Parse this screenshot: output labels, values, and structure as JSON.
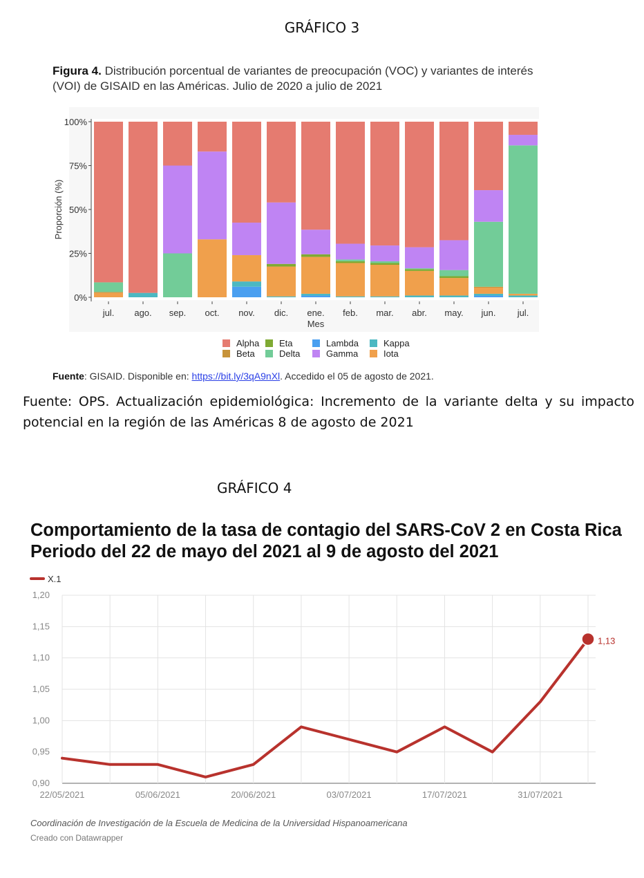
{
  "heading_g3": "GRÁFICO 3",
  "figure4": {
    "title_bold": "Figura 4.",
    "title_line1": " Distribución porcentual de variantes de preocupación (VOC) y variantes de interés",
    "title_line2": "(VOI) de GISAID en las Américas. Julio de 2020 a julio de 2021",
    "source_bold": "Fuente",
    "source_text": ": GISAID. Disponible en: ",
    "source_link": "https://bit.ly/3qA9nXl",
    "source_tail": ". Accedido el 05 de agosto de 2021."
  },
  "ops_source": "Fuente: OPS.   Actualización epidemiológica: Incremento de la variante delta y su impacto potencial en la región de las Américas 8 de agosto de 2021",
  "heading_g4": "GRÁFICO 4",
  "datawrapper": {
    "title_line1": "Comportamiento de la tasa de contagio del SARS-CoV 2 en Costa Rica",
    "title_line2": "Periodo del 22 de mayo del 2021 al 9 de agosto del 2021",
    "note": "Coordinación de Investigación de la Escuela de Medicina de la Universidad Hispanoamericana",
    "credit": "Creado con Datawrapper"
  },
  "colors": {
    "Alpha": "#e57b70",
    "Beta": "#c7933a",
    "Eta": "#7faa33",
    "Delta": "#72cc98",
    "Lambda": "#4a9ff0",
    "Gamma": "#bf84f3",
    "Kappa": "#4cb8c2",
    "Iota": "#f0a04c",
    "line": "#b8322d"
  },
  "chart_data": [
    {
      "type": "bar",
      "stacked": true,
      "xlabel": "Mes",
      "ylabel": "Proporción (%)",
      "ylim": [
        0,
        100
      ],
      "yticks": [
        "0%",
        "25%",
        "50%",
        "75%",
        "100%"
      ],
      "categories": [
        "jul.",
        "ago.",
        "sep.",
        "oct.",
        "nov.",
        "dic.",
        "ene.",
        "feb.",
        "mar.",
        "abr.",
        "may.",
        "jun.",
        "jul."
      ],
      "legend_rows": [
        [
          "Alpha",
          "Eta",
          "Lambda",
          "Kappa"
        ],
        [
          "Beta",
          "Delta",
          "Gamma",
          "Iota"
        ]
      ],
      "series": [
        {
          "name": "Lambda",
          "values": [
            0,
            0,
            0,
            0,
            6,
            0,
            1,
            0,
            0,
            0,
            0,
            1,
            0
          ]
        },
        {
          "name": "Kappa",
          "values": [
            0,
            2.5,
            0,
            0,
            3,
            0.5,
            1,
            0.5,
            0.5,
            1,
            1,
            1,
            1
          ]
        },
        {
          "name": "Iota",
          "values": [
            2.5,
            0,
            0,
            33,
            15,
            17,
            21,
            19,
            18,
            14,
            10,
            3.5,
            1
          ]
        },
        {
          "name": "Beta",
          "values": [
            0.5,
            0,
            0,
            0,
            0,
            0,
            0,
            0,
            0,
            0,
            0,
            0.5,
            0
          ]
        },
        {
          "name": "Eta",
          "values": [
            0,
            0,
            0,
            0,
            0,
            1.5,
            1.5,
            1,
            1,
            1,
            1,
            0,
            0
          ]
        },
        {
          "name": "Delta",
          "values": [
            5.5,
            0,
            25,
            0,
            0,
            0,
            0,
            1,
            1,
            0.5,
            3.5,
            37,
            84.5
          ]
        },
        {
          "name": "Gamma",
          "values": [
            0,
            0,
            50,
            50,
            18.5,
            35,
            14,
            9,
            9,
            12,
            17,
            18,
            6
          ]
        },
        {
          "name": "Alpha",
          "values": [
            91.5,
            97.5,
            25,
            17,
            57.5,
            46,
            61.5,
            69.5,
            70.5,
            71.5,
            67.5,
            39,
            7.5
          ]
        }
      ]
    },
    {
      "type": "line",
      "series_name": "X.1",
      "ylim": [
        0.9,
        1.2
      ],
      "yticks": [
        "0,90",
        "0,95",
        "1,00",
        "1,05",
        "1,10",
        "1,15",
        "1,20"
      ],
      "xtick_labels": [
        "22/05/2021",
        "05/06/2021",
        "20/06/2021",
        "03/07/2021",
        "17/07/2021",
        "31/07/2021"
      ],
      "x": [
        "22/05/2021",
        "29/05/2021",
        "05/06/2021",
        "13/06/2021",
        "20/06/2021",
        "27/06/2021",
        "03/07/2021",
        "10/07/2021",
        "17/07/2021",
        "24/07/2021",
        "31/07/2021",
        "09/08/2021"
      ],
      "values": [
        0.94,
        0.93,
        0.93,
        0.91,
        0.93,
        0.99,
        0.97,
        0.95,
        0.99,
        0.95,
        1.03,
        1.13
      ],
      "end_label": "1,13"
    }
  ]
}
